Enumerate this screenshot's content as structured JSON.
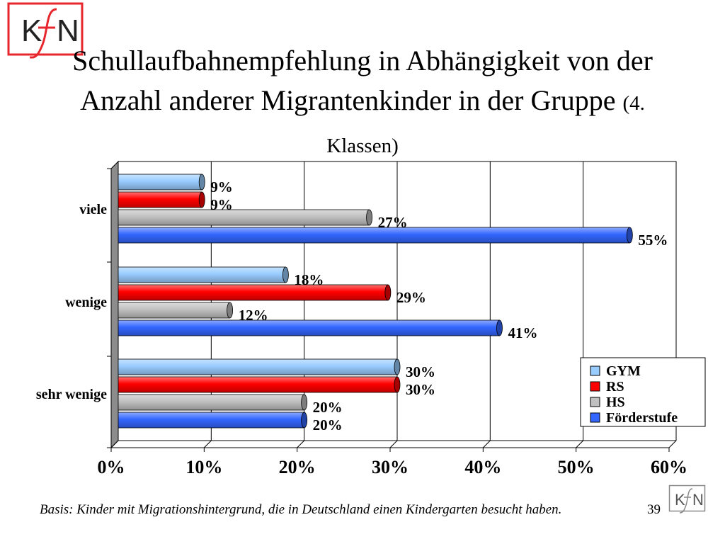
{
  "slide": {
    "title_main": "Schullaufbahnempfehlung in Abhängigkeit von der Anzahl anderer Migrantenkinder in der Gruppe",
    "title_suffix": "(4. Klassen)",
    "footnote": "Basis: Kinder mit Migrationshintergrund, die in Deutschland einen Kindergarten besucht haben.",
    "page_number": "39",
    "logo_text": "KfN"
  },
  "chart_data": {
    "type": "bar",
    "orientation": "horizontal",
    "categories": [
      "viele",
      "wenige",
      "sehr wenige"
    ],
    "series": [
      {
        "name": "GYM",
        "color": "#99ccff",
        "values": [
          9,
          18,
          30
        ]
      },
      {
        "name": "RS",
        "color": "#ff0000",
        "values": [
          9,
          29,
          30
        ]
      },
      {
        "name": "HS",
        "color": "#c0c0c0",
        "values": [
          27,
          12,
          20
        ]
      },
      {
        "name": "Förderstufe",
        "color": "#3366ff",
        "values": [
          55,
          41,
          20
        ]
      }
    ],
    "xlim": [
      0,
      60
    ],
    "x_ticks": [
      0,
      10,
      20,
      30,
      40,
      50,
      60
    ],
    "x_tick_labels": [
      "0%",
      "10%",
      "20%",
      "30%",
      "40%",
      "50%",
      "60%"
    ],
    "data_labels": [
      [
        "9%",
        "9%",
        "27%",
        "55%"
      ],
      [
        "18%",
        "29%",
        "12%",
        "41%"
      ],
      [
        "30%",
        "30%",
        "20%",
        "20%"
      ]
    ],
    "grid": "vertical",
    "legend_position": "bottom-right",
    "value_format": "percent"
  }
}
